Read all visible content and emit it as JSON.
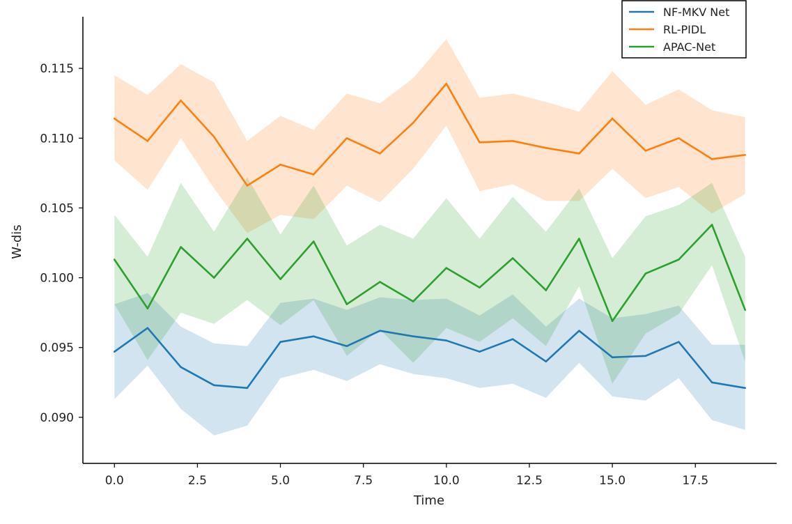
{
  "chart_data": {
    "type": "line",
    "title": "",
    "xlabel": "Time",
    "ylabel": "W-dis",
    "xlim": [
      -0.95,
      19.95
    ],
    "ylim": [
      0.0867,
      0.1187
    ],
    "xticks": [
      0,
      2.5,
      5,
      7.5,
      10,
      12.5,
      15,
      17.5
    ],
    "xtick_labels": [
      "0.0",
      "2.5",
      "5.0",
      "7.5",
      "10.0",
      "12.5",
      "15.0",
      "17.5"
    ],
    "yticks": [
      0.09,
      0.095,
      0.1,
      0.105,
      0.11,
      0.115
    ],
    "ytick_labels": [
      "0.090",
      "0.095",
      "0.100",
      "0.105",
      "0.110",
      "0.115"
    ],
    "grid": false,
    "legend_position": "top-right",
    "x": [
      0,
      1,
      2,
      3,
      4,
      5,
      6,
      7,
      8,
      9,
      10,
      11,
      12,
      13,
      14,
      15,
      16,
      17,
      18,
      19
    ],
    "series": [
      {
        "name": "NF-MKV Net",
        "color": "#1f77b4",
        "values": [
          0.0947,
          0.0964,
          0.0936,
          0.0923,
          0.0921,
          0.0954,
          0.0958,
          0.0951,
          0.0962,
          0.0958,
          0.0955,
          0.0947,
          0.0956,
          0.094,
          0.0962,
          0.0943,
          0.0944,
          0.0954,
          0.0925,
          0.0921
        ],
        "lower": [
          0.0913,
          0.0937,
          0.0906,
          0.0887,
          0.0894,
          0.0928,
          0.0934,
          0.0926,
          0.0938,
          0.0931,
          0.0928,
          0.0921,
          0.0924,
          0.0914,
          0.0939,
          0.0915,
          0.0912,
          0.0928,
          0.0898,
          0.0891
        ],
        "upper": [
          0.0981,
          0.0989,
          0.0965,
          0.0953,
          0.0951,
          0.0982,
          0.0985,
          0.0977,
          0.0986,
          0.0984,
          0.0985,
          0.0973,
          0.0988,
          0.0965,
          0.0985,
          0.0971,
          0.0974,
          0.098,
          0.0952,
          0.0952
        ]
      },
      {
        "name": "RL-PIDL",
        "color": "#ff7f0e",
        "values": [
          0.1114,
          0.1098,
          0.1127,
          0.1101,
          0.1066,
          0.1081,
          0.1074,
          0.11,
          0.1089,
          0.1111,
          0.1139,
          0.1097,
          0.1098,
          0.1093,
          0.1089,
          0.1114,
          0.1091,
          0.11,
          0.1085,
          0.1088
        ],
        "lower": [
          0.1084,
          0.1063,
          0.11,
          0.1064,
          0.1032,
          0.1045,
          0.1042,
          0.1066,
          0.1054,
          0.1078,
          0.1109,
          0.1062,
          0.1067,
          0.1055,
          0.1055,
          0.1078,
          0.1057,
          0.1065,
          0.1046,
          0.106
        ],
        "upper": [
          0.1145,
          0.1131,
          0.1153,
          0.114,
          0.1098,
          0.1116,
          0.1106,
          0.1132,
          0.1125,
          0.1143,
          0.1171,
          0.1129,
          0.1132,
          0.1126,
          0.1119,
          0.1148,
          0.1124,
          0.1135,
          0.112,
          0.1115
        ]
      },
      {
        "name": "APAC-Net",
        "color": "#2ca02c",
        "values": [
          0.1013,
          0.0978,
          0.1022,
          0.1,
          0.1028,
          0.0999,
          0.1026,
          0.0981,
          0.0997,
          0.0983,
          0.1007,
          0.0993,
          0.1014,
          0.0991,
          0.1028,
          0.0969,
          0.1003,
          0.1013,
          0.1038,
          0.0977
        ],
        "lower": [
          0.0981,
          0.0941,
          0.0975,
          0.0967,
          0.0984,
          0.0966,
          0.0984,
          0.0944,
          0.0963,
          0.0939,
          0.0964,
          0.0954,
          0.0971,
          0.0951,
          0.0994,
          0.0924,
          0.096,
          0.0974,
          0.1009,
          0.094
        ],
        "upper": [
          0.1045,
          0.1015,
          0.1068,
          0.1033,
          0.1072,
          0.1031,
          0.1066,
          0.1023,
          0.1038,
          0.1028,
          0.1057,
          0.1028,
          0.1058,
          0.1033,
          0.1064,
          0.1014,
          0.1044,
          0.1052,
          0.1068,
          0.1015
        ]
      }
    ]
  }
}
